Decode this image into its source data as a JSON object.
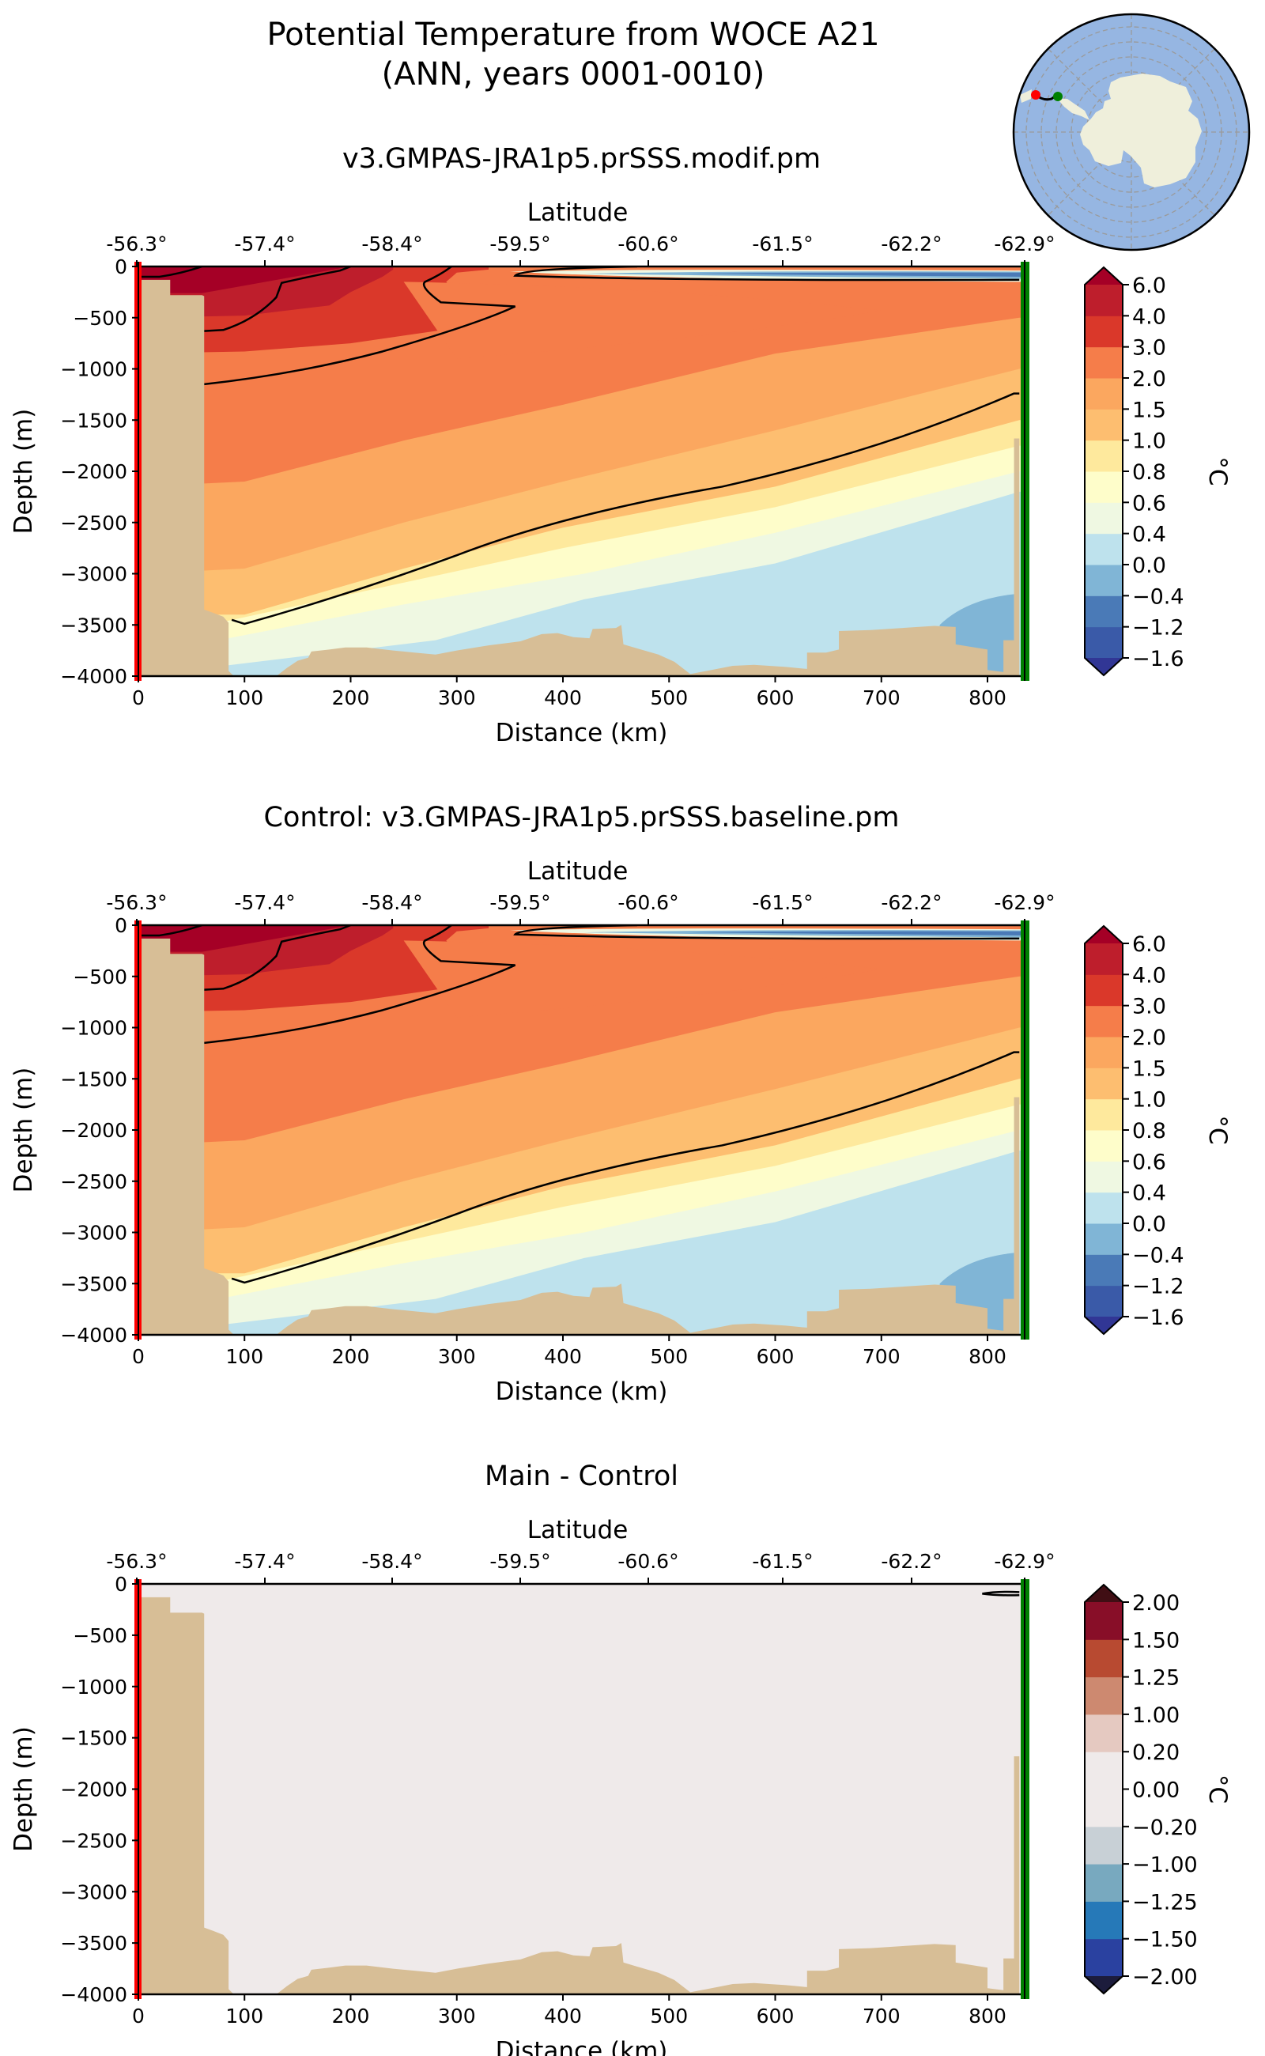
{
  "figure": {
    "title_line1": "Potential Temperature from WOCE A21",
    "title_line2": "(ANN, years 0001-0010)"
  },
  "inset_map": {
    "description": "South polar stereographic map of Antarctica with transect",
    "ocean_color": "#96b6e2",
    "land_color": "#efefdb",
    "start_marker_color": "#ff0000",
    "end_marker_color": "#008000"
  },
  "colors": {
    "bathymetry": "#d7be96",
    "start_line": "#ff0000",
    "end_line": "#008000"
  },
  "chart_data": [
    {
      "type": "heatmap",
      "title": "v3.GMPAS-JRA1p5.prSSS.modif.pm",
      "xlabel": "Distance (km)",
      "ylabel": "Depth (m)",
      "top_xlabel": "Latitude",
      "xlim": [
        0,
        835
      ],
      "ylim": [
        -4000,
        0
      ],
      "x_ticks": [
        0,
        100,
        200,
        300,
        400,
        500,
        600,
        700,
        800
      ],
      "y_ticks": [
        0,
        -500,
        -1000,
        -1500,
        -2000,
        -2500,
        -3000,
        -3500,
        -4000
      ],
      "y_tick_labels": [
        "0",
        "−500",
        "−1000",
        "−1500",
        "−2000",
        "−2500",
        "−3000",
        "−3500",
        "−4000"
      ],
      "top_ticks": [
        "-56.3°",
        "-57.4°",
        "-58.4°",
        "-59.5°",
        "-60.6°",
        "-61.5°",
        "-62.2°",
        "-62.9°"
      ],
      "colorbar": {
        "label": "°C",
        "levels": [
          -1.6,
          -1.2,
          -0.4,
          0.0,
          0.4,
          0.6,
          0.8,
          1.0,
          1.5,
          2.0,
          3.0,
          4.0,
          6.0
        ],
        "tick_labels": [
          "−1.6",
          "−1.2",
          "−0.4",
          "0.0",
          "0.4",
          "0.6",
          "0.8",
          "1.0",
          "1.5",
          "2.0",
          "3.0",
          "4.0",
          "6.0"
        ],
        "colors": [
          "#3a5aa8",
          "#4a7ab7",
          "#80b5d6",
          "#bee2ed",
          "#eff8e2",
          "#fefdca",
          "#fee99d",
          "#fdbe70",
          "#fba75f",
          "#f57d4a",
          "#da382a",
          "#be1e2c"
        ],
        "under_color": "#313695",
        "over_color": "#a50026",
        "extend": "both"
      },
      "contour_levels": [
        4.0,
        1.0,
        0.0
      ]
    },
    {
      "type": "heatmap",
      "title": "Control: v3.GMPAS-JRA1p5.prSSS.baseline.pm",
      "xlabel": "Distance (km)",
      "ylabel": "Depth (m)",
      "top_xlabel": "Latitude",
      "xlim": [
        0,
        835
      ],
      "ylim": [
        -4000,
        0
      ],
      "x_ticks": [
        0,
        100,
        200,
        300,
        400,
        500,
        600,
        700,
        800
      ],
      "y_ticks": [
        0,
        -500,
        -1000,
        -1500,
        -2000,
        -2500,
        -3000,
        -3500,
        -4000
      ],
      "y_tick_labels": [
        "0",
        "−500",
        "−1000",
        "−1500",
        "−2000",
        "−2500",
        "−3000",
        "−3500",
        "−4000"
      ],
      "top_ticks": [
        "-56.3°",
        "-57.4°",
        "-58.4°",
        "-59.5°",
        "-60.6°",
        "-61.5°",
        "-62.2°",
        "-62.9°"
      ],
      "colorbar": {
        "label": "°C",
        "levels": [
          -1.6,
          -1.2,
          -0.4,
          0.0,
          0.4,
          0.6,
          0.8,
          1.0,
          1.5,
          2.0,
          3.0,
          4.0,
          6.0
        ],
        "tick_labels": [
          "−1.6",
          "−1.2",
          "−0.4",
          "0.0",
          "0.4",
          "0.6",
          "0.8",
          "1.0",
          "1.5",
          "2.0",
          "3.0",
          "4.0",
          "6.0"
        ],
        "colors": [
          "#3a5aa8",
          "#4a7ab7",
          "#80b5d6",
          "#bee2ed",
          "#eff8e2",
          "#fefdca",
          "#fee99d",
          "#fdbe70",
          "#fba75f",
          "#f57d4a",
          "#da382a",
          "#be1e2c"
        ],
        "under_color": "#313695",
        "over_color": "#a50026",
        "extend": "both"
      },
      "contour_levels": [
        4.0,
        1.0,
        0.0
      ]
    },
    {
      "type": "heatmap",
      "title": "Main - Control",
      "xlabel": "Distance (km)",
      "ylabel": "Depth (m)",
      "top_xlabel": "Latitude",
      "xlim": [
        0,
        835
      ],
      "ylim": [
        -4000,
        0
      ],
      "x_ticks": [
        0,
        100,
        200,
        300,
        400,
        500,
        600,
        700,
        800
      ],
      "y_ticks": [
        0,
        -500,
        -1000,
        -1500,
        -2000,
        -2500,
        -3000,
        -3500,
        -4000
      ],
      "y_tick_labels": [
        "0",
        "−500",
        "−1000",
        "−1500",
        "−2000",
        "−2500",
        "−3000",
        "−3500",
        "−4000"
      ],
      "top_ticks": [
        "-56.3°",
        "-57.4°",
        "-58.4°",
        "-59.5°",
        "-60.6°",
        "-61.5°",
        "-62.2°",
        "-62.9°"
      ],
      "colorbar": {
        "label": "°C",
        "levels": [
          -2.0,
          -1.5,
          -1.25,
          -1.0,
          -0.2,
          0.0,
          0.2,
          1.0,
          1.25,
          1.5,
          2.0
        ],
        "tick_labels": [
          "−2.00",
          "−1.50",
          "−1.25",
          "−1.00",
          "−0.20",
          "0.00",
          "0.20",
          "1.00",
          "1.25",
          "1.50",
          "2.00"
        ],
        "colors": [
          "#2a41a0",
          "#2679b8",
          "#78a9bf",
          "#c8d0d6",
          "#efeaea",
          "#efeaea",
          "#e5c9c1",
          "#cd8970",
          "#b84a31",
          "#880e28"
        ],
        "under_color": "#1c1c3c",
        "over_color": "#400e14",
        "extend": "both"
      },
      "field_value": 0.0
    }
  ]
}
